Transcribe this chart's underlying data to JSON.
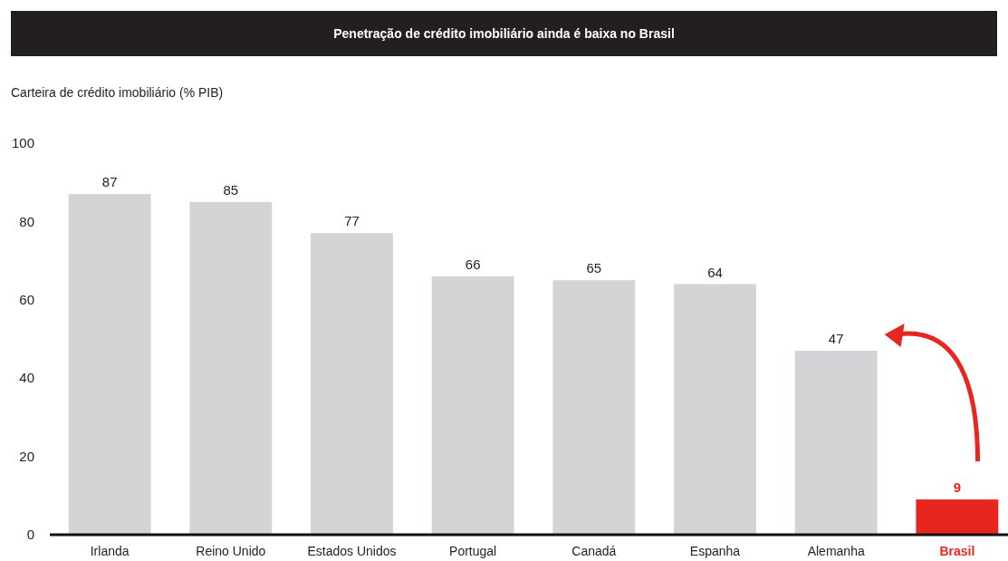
{
  "chart_data": {
    "type": "bar",
    "title": "Penetração de crédito imobiliário ainda é baixa no Brasil",
    "ylabel": "Carteira de crédito imobiliário (% PIB)",
    "categories": [
      "Irlanda",
      "Reino Unido",
      "Estados Unidos",
      "Portugal",
      "Canadá",
      "Espanha",
      "Alemanha",
      "Brasil"
    ],
    "values": [
      87,
      85,
      77,
      66,
      65,
      64,
      47,
      9
    ],
    "colors": [
      "#d3d4d6",
      "#d3d4d6",
      "#d3d4d6",
      "#d3d4d6",
      "#d3d4d6",
      "#d3d4d6",
      "#d3d4d6",
      "#e8251f"
    ],
    "ylim": [
      0,
      100
    ],
    "yticks": [
      0,
      20,
      40,
      60,
      80,
      100
    ],
    "grid": false,
    "data_labels": true
  }
}
